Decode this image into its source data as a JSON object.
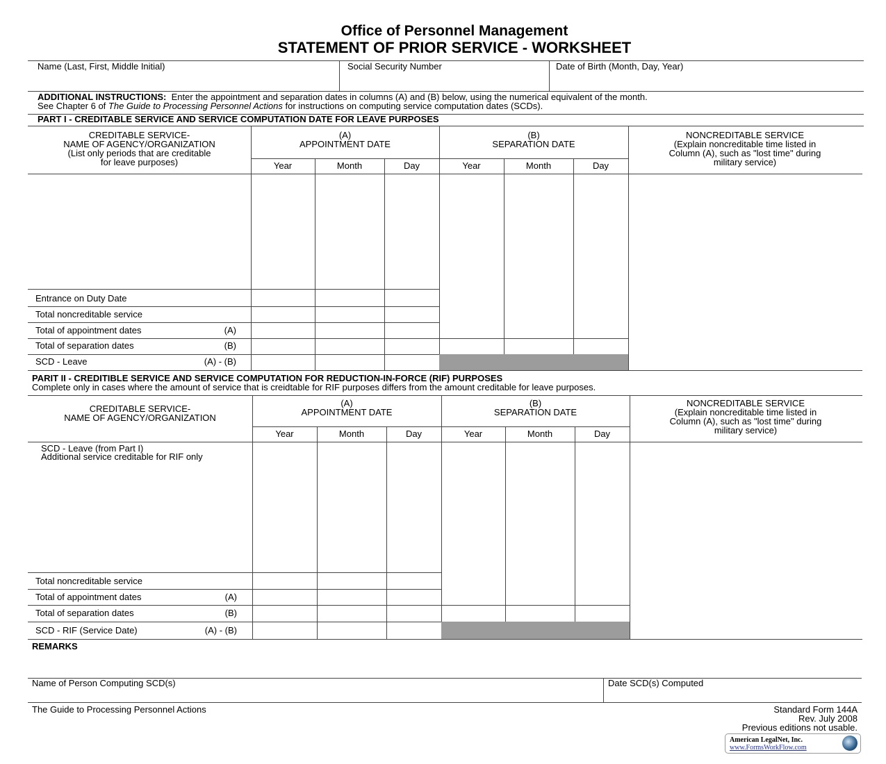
{
  "header": {
    "agency": "Office of Personnel Management",
    "title": "STATEMENT OF PRIOR SERVICE - WORKSHEET"
  },
  "fields": {
    "name_label": "Name (Last, First, Middle Initial)",
    "ssn_label": "Social Security Number",
    "dob_label": "Date of Birth (Month, Day, Year)"
  },
  "instructions": {
    "lead": "ADDITIONAL INSTRUCTIONS:",
    "line1": "Enter the appointment and separation dates in columns (A) and (B) below, using the numerical equivalent of the month.",
    "line2_pre": "See Chapter 6 of ",
    "line2_italic": "The Guide to Processing Personnel Actions",
    "line2_post": " for instructions on computing service computation dates (SCDs)."
  },
  "part1": {
    "heading": "PART I - CREDITABLE SERVICE AND SERVICE COMPUTATION DATE FOR LEAVE PURPOSES",
    "col_agency": [
      "CREDITABLE SERVICE-",
      "NAME OF AGENCY/ORGANIZATION",
      "(List only periods that are creditable",
      "for leave purposes)"
    ],
    "col_a": [
      "(A)",
      "APPOINTMENT DATE"
    ],
    "col_b": [
      "(B)",
      "SEPARATION DATE"
    ],
    "col_noncred": [
      "NONCREDITABLE SERVICE",
      "(Explain noncreditable time listed in",
      "Column (A), such as \"lost time\" during",
      "military service)"
    ],
    "sub": [
      "Year",
      "Month",
      "Day"
    ],
    "rows": [
      {
        "label": "Entrance on Duty Date",
        "tag": ""
      },
      {
        "label": "Total noncreditable service",
        "tag": ""
      },
      {
        "label": "Total of appointment dates",
        "tag": "(A)"
      },
      {
        "label": "Total of separation dates",
        "tag": "(B)"
      },
      {
        "label": "SCD - Leave",
        "tag": "(A) - (B)"
      }
    ]
  },
  "part2": {
    "heading": "PARIT II - CREDITIBLE SERVICE AND SERVICE COMPUTATION FOR REDUCTION-IN-FORCE (RIF) PURPOSES",
    "note": "Complete only in cases where the amount of service that is creidtable for RIF purposes differs from the amount creditable for leave purposes.",
    "col_agency": [
      "CREDITABLE SERVICE-",
      "NAME OF AGENCY/ORGANIZATION"
    ],
    "col_a": [
      "(A)",
      "APPOINTMENT DATE"
    ],
    "col_b": [
      "(B)",
      "SEPARATION DATE"
    ],
    "col_noncred": [
      "NONCREDITABLE SERVICE",
      "(Explain noncreditable time listed in",
      "Column (A), such as \"lost time\" during",
      "military service)"
    ],
    "sub": [
      "Year",
      "Month",
      "Day"
    ],
    "first_entries": [
      "SCD - Leave (from Part I)",
      "Additional service creditable for RIF only"
    ],
    "rows": [
      {
        "label": "Total noncreditable service",
        "tag": ""
      },
      {
        "label": "Total of appointment dates",
        "tag": "(A)"
      },
      {
        "label": "Total of separation dates",
        "tag": "(B)"
      },
      {
        "label": "SCD - RIF (Service Date)",
        "tag": "(A) - (B)"
      }
    ]
  },
  "remarks_label": "REMARKS",
  "signoff": {
    "person_label": "Name of Person Computing SCD(s)",
    "date_label": "Date SCD(s) Computed"
  },
  "footer": {
    "left": "The Guide to Processing Personnel Actions",
    "form": "Standard Form 144A",
    "rev": "Rev. July 2008",
    "prev": "Previous editions not usable.",
    "logo_name": "American LegalNet, Inc.",
    "logo_url": "www.FormsWorkFlow.com"
  },
  "colors": {
    "shaded_cell": "#9c9c9c",
    "rule": "#444444"
  }
}
